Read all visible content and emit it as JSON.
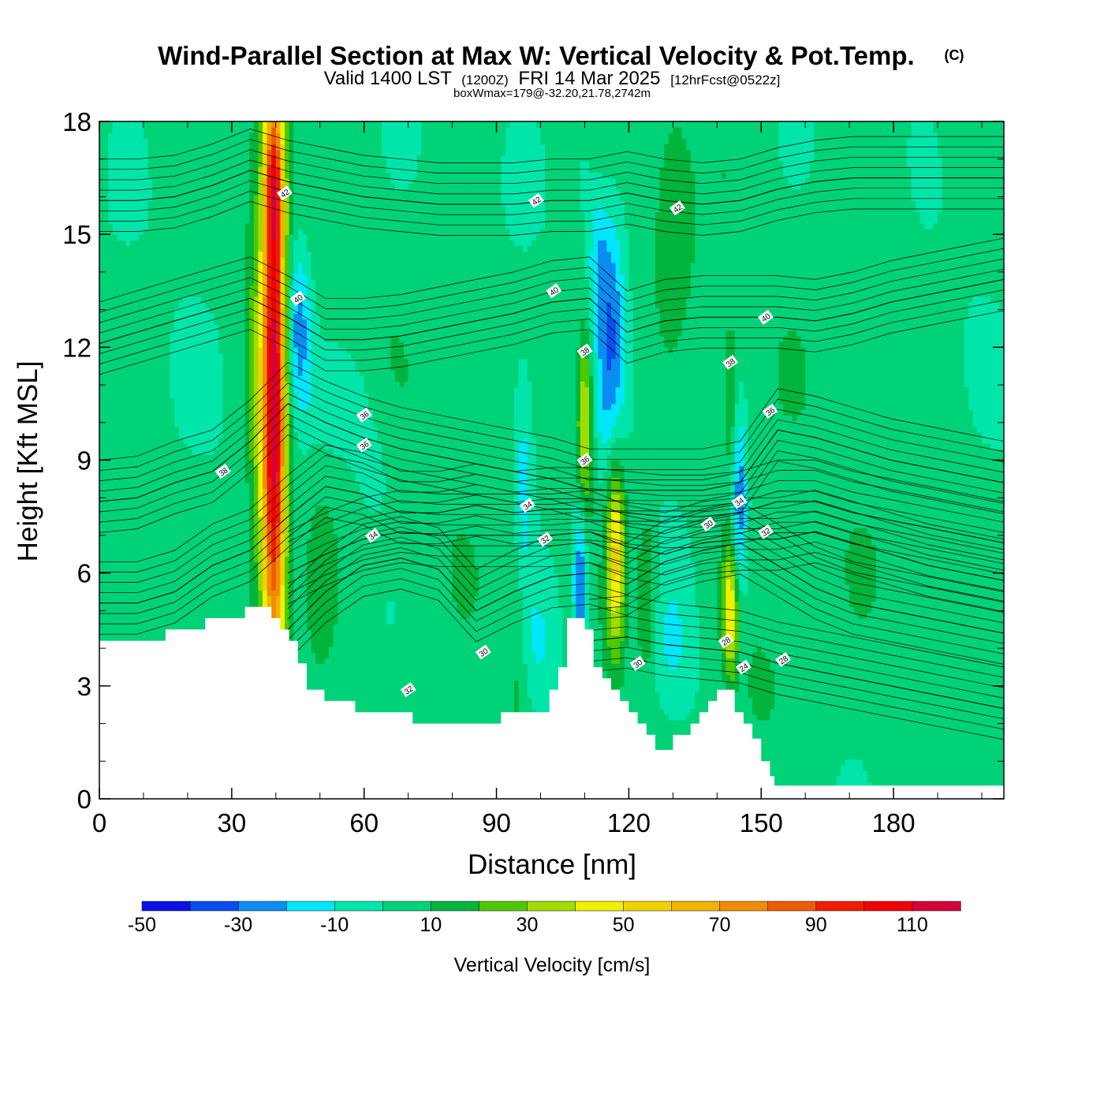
{
  "title": {
    "main": "Wind-Parallel Section at Max W: Vertical Velocity & Pot.Temp.",
    "copyright": "(C)",
    "valid_prefix": "Valid 1400 LST",
    "valid_zulu": "(1200Z)",
    "valid_date": "FRI 14 Mar 2025",
    "forecast": "[12hrFcst@0522z]",
    "box_info": "boxWmax=179@-32.20,21.78,2742m"
  },
  "chart_data": {
    "type": "heatmap",
    "xlabel": "Distance [nm]",
    "ylabel": "Height [Kft MSL]",
    "xlim": [
      0,
      205
    ],
    "ylim": [
      0,
      18
    ],
    "x_ticks": [
      "0",
      "30",
      "60",
      "90",
      "120",
      "150",
      "180"
    ],
    "y_ticks": [
      "0",
      "3",
      "6",
      "9",
      "12",
      "15",
      "18"
    ],
    "colorbar": {
      "label": "Vertical Velocity [cm/s]",
      "tick_labels": [
        "-50",
        "-30",
        "-10",
        "10",
        "30",
        "50",
        "70",
        "90",
        "110"
      ],
      "levels": [
        -50,
        -40,
        -30,
        -20,
        -10,
        0,
        10,
        20,
        30,
        40,
        50,
        60,
        70,
        80,
        90,
        100,
        110,
        120
      ],
      "colors": [
        "#0a12e6",
        "#0a4ef0",
        "#0a8cf0",
        "#00e6fa",
        "#00e6aa",
        "#00d278",
        "#00b43c",
        "#50c800",
        "#a0dc00",
        "#f0f000",
        "#f0d200",
        "#f0b400",
        "#f08c00",
        "#f05a00",
        "#f01e00",
        "#f00000",
        "#d2003c"
      ]
    },
    "terrain_kft": [
      [
        0,
        4.2
      ],
      [
        15,
        4.2
      ],
      [
        15,
        4.5
      ],
      [
        24,
        4.5
      ],
      [
        24,
        4.8
      ],
      [
        33,
        4.8
      ],
      [
        33,
        5.1
      ],
      [
        39,
        5.1
      ],
      [
        39,
        4.8
      ],
      [
        41,
        4.8
      ],
      [
        41,
        4.5
      ],
      [
        43,
        4.5
      ],
      [
        43,
        4.2
      ],
      [
        45,
        4.2
      ],
      [
        45,
        3.6
      ],
      [
        47,
        3.6
      ],
      [
        47,
        2.9
      ],
      [
        51,
        2.9
      ],
      [
        51,
        2.6
      ],
      [
        58,
        2.6
      ],
      [
        58,
        2.3
      ],
      [
        71,
        2.3
      ],
      [
        71,
        2.0
      ],
      [
        91,
        2.0
      ],
      [
        91,
        2.3
      ],
      [
        102,
        2.3
      ],
      [
        102,
        2.9
      ],
      [
        104,
        2.9
      ],
      [
        104,
        3.5
      ],
      [
        106,
        3.5
      ],
      [
        106,
        4.8
      ],
      [
        110,
        4.8
      ],
      [
        110,
        4.5
      ],
      [
        112,
        4.5
      ],
      [
        112,
        3.5
      ],
      [
        114,
        3.5
      ],
      [
        114,
        3.2
      ],
      [
        116,
        3.2
      ],
      [
        116,
        2.9
      ],
      [
        118,
        2.9
      ],
      [
        118,
        2.6
      ],
      [
        120,
        2.6
      ],
      [
        120,
        2.3
      ],
      [
        122,
        2.3
      ],
      [
        122,
        2.0
      ],
      [
        124,
        2.0
      ],
      [
        124,
        1.7
      ],
      [
        126,
        1.7
      ],
      [
        126,
        1.3
      ],
      [
        130,
        1.3
      ],
      [
        130,
        1.7
      ],
      [
        134,
        1.7
      ],
      [
        134,
        2.0
      ],
      [
        136,
        2.0
      ],
      [
        136,
        2.3
      ],
      [
        138,
        2.3
      ],
      [
        138,
        2.6
      ],
      [
        140,
        2.6
      ],
      [
        140,
        2.9
      ],
      [
        144,
        2.9
      ],
      [
        144,
        2.3
      ],
      [
        146,
        2.3
      ],
      [
        146,
        2.0
      ],
      [
        148,
        2.0
      ],
      [
        148,
        1.6
      ],
      [
        150,
        1.6
      ],
      [
        150,
        1.0
      ],
      [
        152,
        1.0
      ],
      [
        152,
        0.6
      ],
      [
        153,
        0.6
      ],
      [
        153,
        0.35
      ],
      [
        205,
        0.35
      ]
    ],
    "w_features": [
      {
        "x": 39.5,
        "z": 10.0,
        "sx": 2.0,
        "sz": 5.5,
        "w": 115
      },
      {
        "x": 39.5,
        "z": 16.5,
        "sx": 1.5,
        "sz": 1.5,
        "w": 50
      },
      {
        "x": 35,
        "z": 10,
        "sx": 1.5,
        "sz": 5,
        "w": 14
      },
      {
        "x": 45,
        "z": 12.5,
        "sx": 2.2,
        "sz": 1.6,
        "w": -32
      },
      {
        "x": 54,
        "z": 10.6,
        "sx": 5,
        "sz": 0.9,
        "w": -12
      },
      {
        "x": 62,
        "z": 9.0,
        "sx": 4,
        "sz": 1.2,
        "w": -8
      },
      {
        "x": 50,
        "z": 5.5,
        "sx": 3,
        "sz": 2,
        "w": 12
      },
      {
        "x": 96,
        "z": 8.2,
        "sx": 1.6,
        "sz": 2.2,
        "w": -22
      },
      {
        "x": 100,
        "z": 4.0,
        "sx": 3.5,
        "sz": 1.5,
        "w": -16
      },
      {
        "x": 95,
        "z": 5.0,
        "sx": 1.5,
        "sz": 2.5,
        "w": 12
      },
      {
        "x": 110,
        "z": 10.0,
        "sx": 1.3,
        "sz": 1.8,
        "w": 42
      },
      {
        "x": 109,
        "z": 5.8,
        "sx": 1.2,
        "sz": 1.5,
        "w": -38
      },
      {
        "x": 117,
        "z": 6.6,
        "sx": 1.6,
        "sz": 1.9,
        "w": 52
      },
      {
        "x": 116,
        "z": 12.2,
        "sx": 2.3,
        "sz": 2.5,
        "w": -32
      },
      {
        "x": 113,
        "z": 14.5,
        "sx": 1.5,
        "sz": 1.2,
        "w": -16
      },
      {
        "x": 124,
        "z": 5.5,
        "sx": 1.6,
        "sz": 1.5,
        "w": 22
      },
      {
        "x": 130,
        "z": 4.0,
        "sx": 3,
        "sz": 1.4,
        "w": -12
      },
      {
        "x": 143,
        "z": 5.0,
        "sx": 1.3,
        "sz": 1.3,
        "w": 48
      },
      {
        "x": 145,
        "z": 7.8,
        "sx": 1.3,
        "sz": 1.7,
        "w": -32
      },
      {
        "x": 143,
        "z": 10.5,
        "sx": 1,
        "sz": 1.5,
        "w": 18
      },
      {
        "x": 150,
        "z": 3.0,
        "sx": 3,
        "sz": 1,
        "w": 14
      },
      {
        "x": 130,
        "z": 15.5,
        "sx": 3,
        "sz": 2,
        "w": 12
      },
      {
        "x": 110,
        "z": 17,
        "sx": 2,
        "sz": 1.5,
        "w": -8
      },
      {
        "x": 175,
        "z": 14,
        "sx": 6,
        "sz": 2.5,
        "w": 7
      },
      {
        "x": 190,
        "z": 7,
        "sx": 6,
        "sz": 2,
        "w": 7
      }
    ],
    "theta_contours": [
      {
        "value": 42,
        "z": [
          15.9,
          15.9,
          16.0,
          16.3,
          16.7,
          16.4,
          16.2,
          16.0,
          15.9,
          15.8,
          15.8,
          15.8,
          15.9,
          15.9,
          16.1,
          15.9,
          15.8,
          15.9,
          16.2,
          16.4,
          16.5,
          16.5,
          16.5,
          16.5,
          16.5
        ]
      },
      {
        "value": 40,
        "z": [
          12.1,
          12.4,
          12.7,
          13.0,
          13.3,
          12.8,
          12.2,
          12.2,
          12.3,
          12.5,
          12.7,
          12.9,
          13.2,
          13.3,
          12.4,
          12.7,
          12.8,
          12.8,
          12.8,
          12.7,
          12.9,
          13.2,
          13.4,
          13.6,
          13.8
        ]
      },
      {
        "value": 36,
        "z": [
          7.9,
          8.0,
          8.4,
          8.7,
          9.5,
          10.5,
          10.0,
          9.6,
          9.3,
          9.1,
          8.9,
          8.7,
          8.5,
          8.2,
          8.2,
          8.2,
          8.2,
          8.4,
          9.8,
          9.6,
          9.3,
          9.0,
          8.8,
          8.6,
          8.4
        ]
      },
      {
        "value": 34,
        "z": [
          5.2,
          5.2,
          5.5,
          6.2,
          6.6,
          7.5,
          8.3,
          8.1,
          7.6,
          7.6,
          7.8,
          7.6,
          7.7,
          7.7,
          7.6,
          7.5,
          7.5,
          7.6,
          7.9,
          7.9,
          7.6,
          7.4,
          7.2,
          7.0,
          6.8
        ]
      },
      {
        "value": 32,
        "z": [
          null,
          null,
          null,
          null,
          null,
          6.0,
          6.5,
          6.9,
          7.1,
          7.0,
          7.0,
          7.0,
          7.0,
          7.1,
          6.7,
          6.5,
          6.8,
          6.9,
          6.9,
          7.1,
          6.8,
          6.5,
          6.2,
          6.0,
          5.8
        ]
      },
      {
        "value": 30,
        "z": [
          null,
          null,
          null,
          null,
          null,
          4.5,
          5.5,
          6.2,
          6.4,
          6.1,
          5.0,
          5.5,
          5.9,
          6.0,
          5.7,
          6.3,
          6.6,
          6.8,
          6.2,
          5.6,
          5.2,
          5.0,
          4.8,
          4.6,
          4.4
        ]
      },
      {
        "value": 28,
        "z": [
          null,
          null,
          null,
          null,
          null,
          null,
          null,
          null,
          null,
          null,
          null,
          null,
          null,
          4.2,
          4.3,
          4.1,
          4.0,
          3.9,
          3.6,
          3.4,
          3.2,
          3.0,
          2.8,
          2.6,
          2.4
        ]
      }
    ],
    "contour_labels": [
      {
        "x": 42,
        "z": 16.1,
        "text": "42"
      },
      {
        "x": 99,
        "z": 15.9,
        "text": "42"
      },
      {
        "x": 131,
        "z": 15.7,
        "text": "42"
      },
      {
        "x": 45,
        "z": 13.3,
        "text": "40"
      },
      {
        "x": 103,
        "z": 13.5,
        "text": "40"
      },
      {
        "x": 151,
        "z": 12.8,
        "text": "40"
      },
      {
        "x": 110,
        "z": 11.9,
        "text": "38"
      },
      {
        "x": 143,
        "z": 11.6,
        "text": "38"
      },
      {
        "x": 28,
        "z": 8.7,
        "text": "38"
      },
      {
        "x": 60,
        "z": 10.2,
        "text": "36"
      },
      {
        "x": 60,
        "z": 9.4,
        "text": "36"
      },
      {
        "x": 110,
        "z": 9.0,
        "text": "36"
      },
      {
        "x": 152,
        "z": 10.3,
        "text": "36"
      },
      {
        "x": 62,
        "z": 7.0,
        "text": "34"
      },
      {
        "x": 97,
        "z": 7.8,
        "text": "34"
      },
      {
        "x": 145,
        "z": 7.9,
        "text": "34"
      },
      {
        "x": 101,
        "z": 6.9,
        "text": "32"
      },
      {
        "x": 151,
        "z": 7.1,
        "text": "32"
      },
      {
        "x": 70,
        "z": 2.9,
        "text": "32"
      },
      {
        "x": 87,
        "z": 3.9,
        "text": "30"
      },
      {
        "x": 122,
        "z": 3.6,
        "text": "30"
      },
      {
        "x": 138,
        "z": 7.3,
        "text": "30"
      },
      {
        "x": 142,
        "z": 4.2,
        "text": "28"
      },
      {
        "x": 155,
        "z": 3.7,
        "text": "28"
      },
      {
        "x": 146,
        "z": 3.5,
        "text": "24"
      }
    ]
  }
}
